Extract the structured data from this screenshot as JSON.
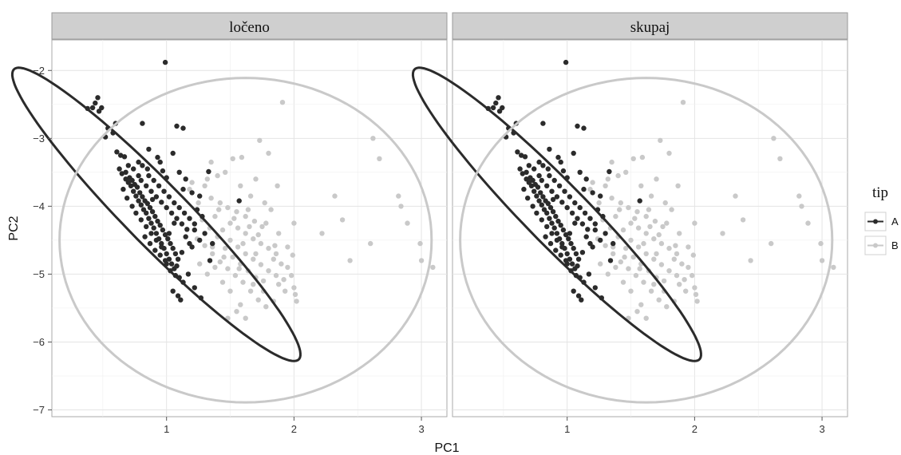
{
  "chart_data": {
    "type": "scatter",
    "xlabel": "PC1",
    "ylabel": "PC2",
    "xlim": [
      0.1,
      3.2
    ],
    "ylim": [
      -7.1,
      -1.55
    ],
    "xticks": [
      1,
      2,
      3
    ],
    "yticks": [
      -7,
      -6,
      -5,
      -4,
      -3,
      -2
    ],
    "grid": true,
    "legend": {
      "title": "tip",
      "position": "right",
      "entries": [
        {
          "label": "A",
          "color": "#2b2b2b"
        },
        {
          "label": "B",
          "color": "#c9c9c9"
        }
      ]
    },
    "series_colors": {
      "A": "#2b2b2b",
      "B": "#c9c9c9"
    },
    "facets": [
      {
        "label": "ločeno",
        "ellipses": [
          {
            "group": "A",
            "center": [
              0.92,
              -4.12
            ],
            "semi_major": 2.42,
            "semi_minor": 0.3,
            "angle_deg": -63
          },
          {
            "group": "B",
            "center": [
              1.62,
              -4.5
            ],
            "semi_major": 1.46,
            "semi_minor": 2.39,
            "angle_deg": 0
          }
        ]
      },
      {
        "label": "skupaj",
        "ellipses": [
          {
            "group": "A",
            "center": [
              0.92,
              -4.12
            ],
            "semi_major": 2.42,
            "semi_minor": 0.3,
            "angle_deg": -63
          },
          {
            "group": "B",
            "center": [
              1.62,
              -4.5
            ],
            "semi_major": 1.46,
            "semi_minor": 2.39,
            "angle_deg": 0
          }
        ]
      }
    ],
    "series": [
      {
        "name": "A",
        "points": [
          [
            0.99,
            -1.88
          ],
          [
            0.46,
            -2.4
          ],
          [
            0.44,
            -2.48
          ],
          [
            0.42,
            -2.55
          ],
          [
            0.38,
            -2.56
          ],
          [
            0.49,
            -2.55
          ],
          [
            0.47,
            -2.6
          ],
          [
            0.6,
            -2.78
          ],
          [
            0.54,
            -2.85
          ],
          [
            0.58,
            -2.92
          ],
          [
            0.52,
            -2.98
          ],
          [
            0.81,
            -2.78
          ],
          [
            1.08,
            -2.82
          ],
          [
            1.13,
            -2.85
          ],
          [
            0.61,
            -3.2
          ],
          [
            0.64,
            -3.25
          ],
          [
            0.67,
            -3.27
          ],
          [
            0.86,
            -3.16
          ],
          [
            1.05,
            -3.22
          ],
          [
            0.78,
            -3.35
          ],
          [
            0.81,
            -3.4
          ],
          [
            0.85,
            -3.45
          ],
          [
            0.95,
            -3.35
          ],
          [
            0.63,
            -3.45
          ],
          [
            0.65,
            -3.52
          ],
          [
            0.68,
            -3.6
          ],
          [
            0.7,
            -3.65
          ],
          [
            0.72,
            -3.7
          ],
          [
            0.74,
            -3.78
          ],
          [
            0.76,
            -3.85
          ],
          [
            0.78,
            -3.92
          ],
          [
            0.8,
            -3.98
          ],
          [
            0.82,
            -4.05
          ],
          [
            0.84,
            -4.1
          ],
          [
            0.86,
            -4.18
          ],
          [
            0.88,
            -4.25
          ],
          [
            0.9,
            -4.32
          ],
          [
            0.92,
            -4.4
          ],
          [
            0.94,
            -4.48
          ],
          [
            0.96,
            -4.55
          ],
          [
            0.98,
            -4.62
          ],
          [
            1.0,
            -4.7
          ],
          [
            1.02,
            -4.78
          ],
          [
            1.04,
            -4.85
          ],
          [
            1.06,
            -4.92
          ],
          [
            0.68,
            -3.5
          ],
          [
            0.71,
            -3.58
          ],
          [
            0.73,
            -3.62
          ],
          [
            0.75,
            -3.68
          ],
          [
            0.77,
            -3.72
          ],
          [
            0.79,
            -3.8
          ],
          [
            0.81,
            -3.86
          ],
          [
            0.83,
            -3.92
          ],
          [
            0.85,
            -3.96
          ],
          [
            0.87,
            -4.02
          ],
          [
            0.89,
            -4.08
          ],
          [
            0.91,
            -4.15
          ],
          [
            0.93,
            -4.22
          ],
          [
            0.95,
            -4.28
          ],
          [
            0.97,
            -4.35
          ],
          [
            0.99,
            -4.42
          ],
          [
            1.01,
            -4.48
          ],
          [
            1.03,
            -4.55
          ],
          [
            1.05,
            -4.62
          ],
          [
            1.07,
            -4.7
          ],
          [
            1.09,
            -4.78
          ],
          [
            0.8,
            -3.62
          ],
          [
            0.84,
            -3.7
          ],
          [
            0.88,
            -3.78
          ],
          [
            0.92,
            -3.86
          ],
          [
            0.96,
            -3.94
          ],
          [
            1.0,
            -4.02
          ],
          [
            1.04,
            -4.1
          ],
          [
            1.08,
            -4.18
          ],
          [
            1.12,
            -4.26
          ],
          [
            1.16,
            -4.34
          ],
          [
            0.86,
            -3.55
          ],
          [
            0.9,
            -3.62
          ],
          [
            0.94,
            -3.7
          ],
          [
            0.98,
            -3.78
          ],
          [
            1.02,
            -3.86
          ],
          [
            1.06,
            -3.95
          ],
          [
            1.1,
            -4.02
          ],
          [
            1.14,
            -4.1
          ],
          [
            1.18,
            -4.18
          ],
          [
            1.22,
            -4.26
          ],
          [
            0.76,
            -4.1
          ],
          [
            0.8,
            -4.2
          ],
          [
            0.84,
            -4.3
          ],
          [
            0.88,
            -4.4
          ],
          [
            0.92,
            -4.5
          ],
          [
            0.96,
            -4.6
          ],
          [
            1.0,
            -4.85
          ],
          [
            0.83,
            -4.45
          ],
          [
            0.87,
            -4.55
          ],
          [
            0.91,
            -4.65
          ],
          [
            0.95,
            -4.72
          ],
          [
            0.99,
            -4.8
          ],
          [
            1.03,
            -4.95
          ],
          [
            1.07,
            -5.02
          ],
          [
            0.73,
            -4.0
          ],
          [
            0.69,
            -3.88
          ],
          [
            0.66,
            -3.75
          ],
          [
            1.1,
            -3.5
          ],
          [
            1.15,
            -3.6
          ],
          [
            1.0,
            -3.58
          ],
          [
            0.97,
            -3.48
          ],
          [
            1.13,
            -3.75
          ],
          [
            1.2,
            -3.8
          ],
          [
            1.26,
            -3.85
          ],
          [
            1.24,
            -4.05
          ],
          [
            1.28,
            -4.15
          ],
          [
            1.3,
            -4.4
          ],
          [
            1.26,
            -4.5
          ],
          [
            1.2,
            -4.6
          ],
          [
            1.15,
            -4.45
          ],
          [
            1.22,
            -4.35
          ],
          [
            1.18,
            -4.55
          ],
          [
            1.12,
            -4.68
          ],
          [
            1.08,
            -4.88
          ],
          [
            1.1,
            -5.05
          ],
          [
            1.13,
            -5.12
          ],
          [
            1.17,
            -5.0
          ],
          [
            1.05,
            -5.25
          ],
          [
            1.09,
            -5.32
          ],
          [
            1.11,
            -5.38
          ],
          [
            1.22,
            -5.2
          ],
          [
            1.27,
            -5.35
          ],
          [
            1.34,
            -4.8
          ],
          [
            1.36,
            -4.55
          ],
          [
            1.57,
            -3.92
          ],
          [
            1.33,
            -3.49
          ],
          [
            0.7,
            -3.4
          ],
          [
            0.93,
            -3.28
          ],
          [
            1.02,
            -4.4
          ],
          [
            1.06,
            -4.25
          ],
          [
            0.78,
            -3.55
          ],
          [
            0.89,
            -3.9
          ],
          [
            0.74,
            -3.45
          ]
        ]
      },
      {
        "name": "B",
        "points": [
          [
            1.91,
            -2.47
          ],
          [
            2.62,
            -3.0
          ],
          [
            2.67,
            -3.3
          ],
          [
            1.73,
            -3.03
          ],
          [
            1.8,
            -3.22
          ],
          [
            1.52,
            -3.3
          ],
          [
            1.59,
            -3.28
          ],
          [
            1.46,
            -3.5
          ],
          [
            1.35,
            -3.35
          ],
          [
            1.4,
            -3.55
          ],
          [
            1.7,
            -3.6
          ],
          [
            1.87,
            -3.7
          ],
          [
            2.82,
            -3.85
          ],
          [
            2.84,
            -4.0
          ],
          [
            2.89,
            -4.25
          ],
          [
            2.32,
            -3.85
          ],
          [
            2.38,
            -4.2
          ],
          [
            2.22,
            -4.4
          ],
          [
            2.6,
            -4.55
          ],
          [
            2.44,
            -4.8
          ],
          [
            2.99,
            -4.55
          ],
          [
            3.0,
            -4.8
          ],
          [
            3.09,
            -4.9
          ],
          [
            1.3,
            -3.7
          ],
          [
            1.35,
            -3.88
          ],
          [
            1.42,
            -3.95
          ],
          [
            1.48,
            -4.02
          ],
          [
            1.55,
            -4.08
          ],
          [
            1.62,
            -4.15
          ],
          [
            1.69,
            -4.22
          ],
          [
            1.75,
            -4.3
          ],
          [
            1.5,
            -4.25
          ],
          [
            1.56,
            -4.32
          ],
          [
            1.62,
            -4.4
          ],
          [
            1.68,
            -4.48
          ],
          [
            1.74,
            -4.55
          ],
          [
            1.8,
            -4.62
          ],
          [
            1.86,
            -4.7
          ],
          [
            1.38,
            -4.15
          ],
          [
            1.44,
            -4.35
          ],
          [
            1.5,
            -4.5
          ],
          [
            1.56,
            -4.6
          ],
          [
            1.62,
            -4.7
          ],
          [
            1.68,
            -4.78
          ],
          [
            1.74,
            -4.86
          ],
          [
            1.8,
            -4.95
          ],
          [
            1.86,
            -5.02
          ],
          [
            1.92,
            -5.08
          ],
          [
            1.98,
            -5.02
          ],
          [
            1.46,
            -4.62
          ],
          [
            1.52,
            -4.75
          ],
          [
            1.58,
            -4.85
          ],
          [
            1.64,
            -4.95
          ],
          [
            1.7,
            -5.05
          ],
          [
            1.76,
            -5.1
          ],
          [
            1.4,
            -4.45
          ],
          [
            1.34,
            -4.32
          ],
          [
            1.28,
            -4.2
          ],
          [
            1.24,
            -4.48
          ],
          [
            1.3,
            -4.58
          ],
          [
            1.36,
            -4.7
          ],
          [
            1.42,
            -4.82
          ],
          [
            1.48,
            -4.92
          ],
          [
            1.54,
            -5.02
          ],
          [
            1.6,
            -5.12
          ],
          [
            1.66,
            -5.25
          ],
          [
            1.72,
            -5.38
          ],
          [
            1.78,
            -5.48
          ],
          [
            1.84,
            -5.4
          ],
          [
            1.93,
            -5.25
          ],
          [
            2.0,
            -5.2
          ],
          [
            2.02,
            -5.4
          ],
          [
            2.01,
            -5.3
          ],
          [
            1.55,
            -5.55
          ],
          [
            1.62,
            -5.65
          ],
          [
            1.48,
            -5.65
          ],
          [
            1.58,
            -5.45
          ],
          [
            1.25,
            -3.95
          ],
          [
            1.2,
            -3.65
          ],
          [
            1.18,
            -3.75
          ],
          [
            1.32,
            -3.6
          ],
          [
            1.88,
            -4.4
          ],
          [
            1.95,
            -4.6
          ],
          [
            2.0,
            -4.25
          ],
          [
            1.82,
            -4.05
          ],
          [
            1.77,
            -3.95
          ],
          [
            1.66,
            -3.85
          ],
          [
            1.58,
            -3.7
          ],
          [
            1.45,
            -4.75
          ],
          [
            1.38,
            -4.9
          ],
          [
            1.32,
            -5.0
          ],
          [
            1.26,
            -4.85
          ],
          [
            1.9,
            -4.85
          ],
          [
            1.84,
            -4.78
          ],
          [
            1.7,
            -4.7
          ],
          [
            1.6,
            -4.55
          ],
          [
            1.65,
            -4.3
          ],
          [
            1.72,
            -4.42
          ],
          [
            1.78,
            -4.25
          ],
          [
            1.85,
            -4.58
          ],
          [
            1.5,
            -5.25
          ],
          [
            1.44,
            -5.12
          ],
          [
            1.95,
            -4.9
          ],
          [
            1.99,
            -4.72
          ],
          [
            1.53,
            -4.18
          ],
          [
            1.41,
            -4.05
          ],
          [
            1.36,
            -4.6
          ],
          [
            1.64,
            -4.05
          ],
          [
            1.88,
            -5.15
          ],
          [
            1.76,
            -5.25
          ],
          [
            1.68,
            -5.15
          ],
          [
            1.57,
            -4.92
          ]
        ]
      }
    ]
  }
}
